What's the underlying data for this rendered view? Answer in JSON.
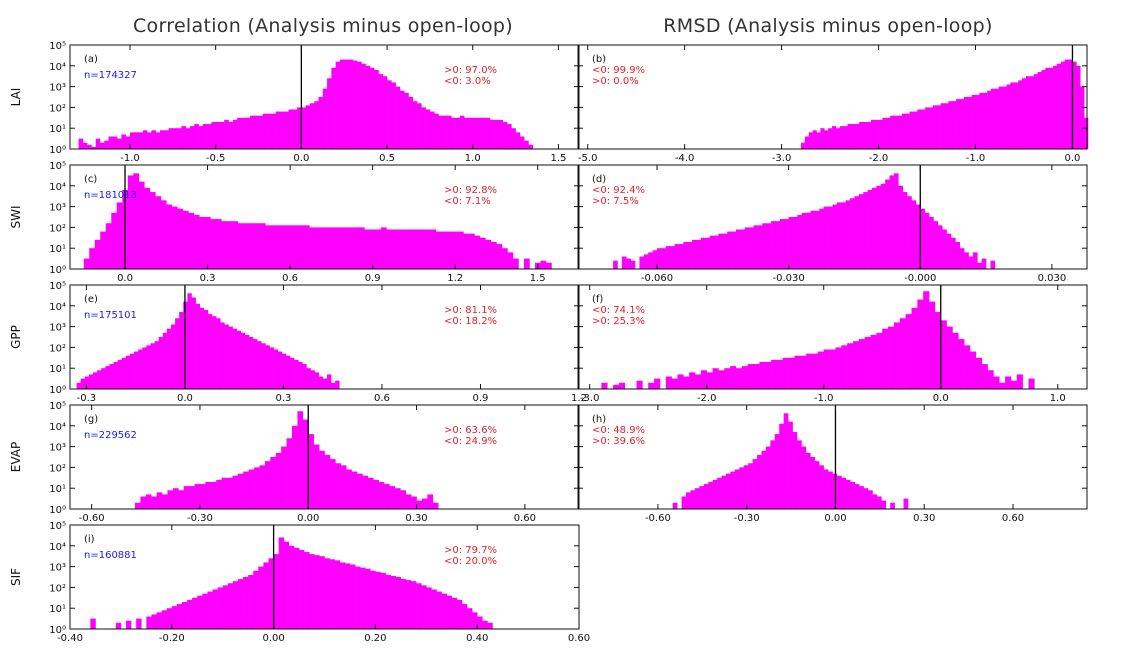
{
  "column_titles": [
    "Correlation (Analysis minus open-loop)",
    "RMSD (Analysis minus open-loop)"
  ],
  "colors": {
    "bar": "#ff00ff",
    "n_text": "#1a1aff",
    "stat_text": "#e8202a",
    "frame": "#111111",
    "zero_line": "#000000"
  },
  "chart_data": [
    {
      "type": "bar",
      "panel": "(a)",
      "ylabel": "LAI",
      "n": "n=174327",
      "stats": [
        ">0: 97.0%",
        "<0:  3.0%"
      ],
      "xlim": [
        -1.35,
        1.62
      ],
      "xticks": [
        -1.0,
        -0.5,
        0.0,
        0.5,
        1.0,
        1.5
      ],
      "xtick_labels": [
        "-1.0",
        "-0.5",
        "0.0",
        "0.5",
        "1.0",
        "1.5"
      ],
      "ylim": [
        1,
        100000
      ],
      "yscale": "log",
      "yticks": [
        1,
        10,
        100,
        1000,
        10000,
        100000
      ],
      "ytick_labels": [
        "10⁰",
        "10¹",
        "10²",
        "10³",
        "10⁴",
        "10⁵"
      ],
      "zero_line": 0.0,
      "bins": {
        "start": -1.3,
        "width": 0.025
      },
      "log10_counts": [
        0.5,
        0.3,
        0.2,
        0.1,
        0.5,
        0.3,
        0.4,
        0.6,
        0.6,
        0.5,
        0.7,
        0.6,
        0.8,
        0.8,
        0.8,
        0.9,
        0.8,
        0.9,
        0.8,
        0.9,
        0.9,
        1.0,
        1.0,
        1.0,
        1.1,
        1.0,
        1.1,
        1.2,
        1.1,
        1.2,
        1.2,
        1.3,
        1.3,
        1.3,
        1.4,
        1.3,
        1.4,
        1.5,
        1.5,
        1.5,
        1.6,
        1.6,
        1.6,
        1.7,
        1.7,
        1.7,
        1.8,
        1.8,
        1.8,
        1.9,
        1.9,
        2.0,
        2.0,
        2.1,
        2.2,
        2.3,
        2.5,
        2.9,
        3.4,
        3.9,
        4.2,
        4.3,
        4.3,
        4.3,
        4.25,
        4.2,
        4.1,
        4.0,
        3.9,
        3.8,
        3.6,
        3.5,
        3.3,
        3.2,
        3.0,
        2.8,
        2.7,
        2.5,
        2.3,
        2.2,
        2.0,
        1.9,
        1.8,
        1.7,
        1.6,
        1.6,
        1.6,
        1.5,
        1.5,
        1.6,
        1.5,
        1.5,
        1.5,
        1.5,
        1.5,
        1.5,
        1.4,
        1.4,
        1.4,
        1.3,
        1.2,
        1.0,
        0.8,
        0.6,
        0.4,
        0.2
      ]
    },
    {
      "type": "bar",
      "panel": "(b)",
      "ylabel": "",
      "n": "",
      "stats": [
        "<0: 99.9%",
        ">0:  0.0%"
      ],
      "xlim": [
        -5.1,
        0.15
      ],
      "xticks": [
        -5.0,
        -4.0,
        -3.0,
        -2.0,
        -1.0,
        0.0
      ],
      "xtick_labels": [
        "-5.0",
        "-4.0",
        "-3.0",
        "-2.0",
        "-1.0",
        "0.0"
      ],
      "ylim": [
        1,
        100000
      ],
      "yscale": "log",
      "yticks": [
        1,
        10,
        100,
        1000,
        10000,
        100000
      ],
      "ytick_labels": [
        "10⁰",
        "10¹",
        "10²",
        "10³",
        "10⁴",
        "10⁵"
      ],
      "zero_line": 0.0,
      "bins": {
        "start": -2.8,
        "width": 0.04
      },
      "log10_counts": [
        0.3,
        0.6,
        0.8,
        0.9,
        0.8,
        1.0,
        0.9,
        1.0,
        1.1,
        1.0,
        1.1,
        1.1,
        1.2,
        1.2,
        1.2,
        1.3,
        1.3,
        1.3,
        1.4,
        1.4,
        1.4,
        1.5,
        1.5,
        1.6,
        1.6,
        1.6,
        1.7,
        1.7,
        1.8,
        1.8,
        1.9,
        1.9,
        2.0,
        2.0,
        2.1,
        2.1,
        2.2,
        2.2,
        2.3,
        2.3,
        2.4,
        2.4,
        2.5,
        2.5,
        2.6,
        2.6,
        2.7,
        2.7,
        2.8,
        2.9,
        2.9,
        3.0,
        3.0,
        3.1,
        3.2,
        3.2,
        3.3,
        3.4,
        3.5,
        3.5,
        3.6,
        3.7,
        3.8,
        3.9,
        3.9,
        4.0,
        4.1,
        4.2,
        4.3,
        4.3,
        4.2,
        4.0,
        3.0,
        1.5
      ]
    },
    {
      "type": "bar",
      "panel": "(c)",
      "ylabel": "SWI",
      "n": "n=181013",
      "stats": [
        ">0: 92.8%",
        "<0:  7.1%"
      ],
      "xlim": [
        -0.2,
        1.65
      ],
      "xticks": [
        0.0,
        0.3,
        0.6,
        0.9,
        1.2,
        1.5
      ],
      "xtick_labels": [
        "0.0",
        "0.3",
        "0.6",
        "0.9",
        "1.2",
        "1.5"
      ],
      "ylim": [
        1,
        100000
      ],
      "yscale": "log",
      "yticks": [
        1,
        10,
        100,
        1000,
        10000,
        100000
      ],
      "ytick_labels": [
        "10⁰",
        "10¹",
        "10²",
        "10³",
        "10⁴",
        "10⁵"
      ],
      "zero_line": 0.0,
      "bins": {
        "start": -0.15,
        "width": 0.02
      },
      "log10_counts": [
        0.5,
        1.0,
        1.4,
        1.8,
        2.2,
        2.7,
        3.2,
        3.8,
        4.5,
        4.6,
        4.2,
        3.9,
        3.7,
        3.5,
        3.3,
        3.1,
        3.0,
        2.9,
        2.8,
        2.7,
        2.6,
        2.5,
        2.5,
        2.4,
        2.4,
        2.3,
        2.3,
        2.3,
        2.2,
        2.2,
        2.2,
        2.2,
        2.2,
        2.1,
        2.1,
        2.1,
        2.1,
        2.1,
        2.1,
        2.1,
        2.1,
        2.0,
        2.0,
        2.0,
        2.0,
        2.0,
        2.0,
        2.0,
        2.0,
        2.0,
        2.0,
        1.9,
        1.9,
        1.9,
        2.0,
        1.9,
        1.9,
        1.9,
        1.9,
        1.9,
        1.9,
        1.9,
        1.9,
        1.9,
        1.8,
        1.8,
        1.8,
        1.8,
        1.8,
        1.7,
        1.7,
        1.6,
        1.5,
        1.4,
        1.3,
        1.2,
        1.0,
        0.8,
        0.5,
        0.0,
        0.5,
        0.0,
        0.3,
        0.4,
        0.3
      ]
    },
    {
      "type": "bar",
      "panel": "(d)",
      "ylabel": "",
      "n": "",
      "stats": [
        "<0: 92.4%",
        ">0:  7.5%"
      ],
      "xlim": [
        -0.078,
        0.038
      ],
      "xticks": [
        -0.06,
        -0.03,
        0.0,
        0.03
      ],
      "xtick_labels": [
        "-0.060",
        "-0.030",
        "-0.000",
        "0.030"
      ],
      "ylim": [
        1,
        100000
      ],
      "yscale": "log",
      "yticks": [
        1,
        10,
        100,
        1000,
        10000,
        100000
      ],
      "ytick_labels": [
        "10⁰",
        "10¹",
        "10²",
        "10³",
        "10⁴",
        "10⁵"
      ],
      "zero_line": 0.0,
      "bins": {
        "start": -0.07,
        "width": 0.001
      },
      "log10_counts": [
        0.4,
        0.0,
        0.6,
        0.5,
        0.4,
        0.0,
        0.6,
        0.7,
        0.8,
        0.9,
        1.0,
        1.0,
        1.1,
        1.1,
        1.2,
        1.2,
        1.3,
        1.3,
        1.4,
        1.4,
        1.5,
        1.5,
        1.6,
        1.6,
        1.7,
        1.7,
        1.8,
        1.8,
        1.9,
        1.9,
        2.0,
        2.0,
        2.1,
        2.1,
        2.2,
        2.2,
        2.3,
        2.3,
        2.4,
        2.4,
        2.5,
        2.5,
        2.6,
        2.7,
        2.7,
        2.8,
        2.8,
        2.9,
        3.0,
        3.0,
        3.1,
        3.2,
        3.2,
        3.3,
        3.4,
        3.5,
        3.6,
        3.7,
        3.8,
        3.9,
        4.0,
        4.1,
        4.3,
        4.5,
        4.6,
        4.0,
        3.7,
        3.5,
        3.3,
        3.1,
        2.9,
        2.7,
        2.5,
        2.3,
        2.1,
        1.9,
        1.7,
        1.5,
        1.3,
        1.0,
        0.8,
        0.6,
        0.8,
        0.3,
        0.5,
        0.0,
        0.4
      ]
    },
    {
      "type": "bar",
      "panel": "(e)",
      "ylabel": "GPP",
      "n": "n=175101",
      "stats": [
        ">0: 81.1%",
        "<0: 18.2%"
      ],
      "xlim": [
        -0.35,
        1.2
      ],
      "xticks": [
        -0.3,
        0.0,
        0.3,
        0.6,
        0.9,
        1.2
      ],
      "xtick_labels": [
        "-0.3",
        "0.0",
        "0.3",
        "0.6",
        "0.9",
        "1.2"
      ],
      "ylim": [
        1,
        100000
      ],
      "yscale": "log",
      "yticks": [
        1,
        10,
        100,
        1000,
        10000,
        100000
      ],
      "ytick_labels": [
        "10⁰",
        "10¹",
        "10²",
        "10³",
        "10⁴",
        "10⁵"
      ],
      "zero_line": 0.0,
      "bins": {
        "start": -0.33,
        "width": 0.0125
      },
      "log10_counts": [
        0.3,
        0.5,
        0.6,
        0.7,
        0.8,
        0.9,
        1.0,
        1.1,
        1.2,
        1.3,
        1.4,
        1.5,
        1.6,
        1.7,
        1.8,
        1.9,
        2.0,
        2.1,
        2.2,
        2.3,
        2.5,
        2.7,
        2.9,
        3.1,
        3.4,
        3.7,
        4.2,
        4.6,
        4.4,
        4.1,
        3.9,
        3.8,
        3.6,
        3.5,
        3.4,
        3.2,
        3.1,
        3.0,
        2.9,
        2.8,
        2.7,
        2.6,
        2.5,
        2.4,
        2.3,
        2.2,
        2.1,
        2.0,
        1.9,
        1.8,
        1.7,
        1.6,
        1.5,
        1.4,
        1.3,
        1.2,
        1.0,
        0.9,
        0.8,
        0.6,
        0.5,
        0.7,
        0.3,
        0.4
      ]
    },
    {
      "type": "bar",
      "panel": "(f)",
      "ylabel": "",
      "n": "",
      "stats": [
        "<0: 74.1%",
        ">0: 25.3%"
      ],
      "xlim": [
        -3.1,
        1.25
      ],
      "xticks": [
        -3.0,
        -2.0,
        -1.0,
        0.0,
        1.0
      ],
      "xtick_labels": [
        "-3.0",
        "-2.0",
        "-1.0",
        "0.0",
        "1.0"
      ],
      "ylim": [
        1,
        100000
      ],
      "yscale": "log",
      "yticks": [
        1,
        10,
        100,
        1000,
        10000,
        100000
      ],
      "ytick_labels": [
        "10⁰",
        "10¹",
        "10²",
        "10³",
        "10⁴",
        "10⁵"
      ],
      "zero_line": 0.0,
      "bins": {
        "start": -2.9,
        "width": 0.05
      },
      "log10_counts": [
        0.3,
        0.0,
        0.2,
        0.3,
        0.0,
        0.0,
        0.4,
        0.0,
        0.3,
        0.5,
        0.0,
        0.6,
        0.5,
        0.7,
        0.6,
        0.8,
        0.7,
        0.9,
        0.8,
        1.0,
        0.9,
        1.0,
        1.1,
        1.0,
        1.1,
        1.2,
        1.2,
        1.3,
        1.3,
        1.4,
        1.4,
        1.5,
        1.5,
        1.6,
        1.6,
        1.7,
        1.7,
        1.8,
        1.9,
        1.9,
        2.0,
        2.1,
        2.2,
        2.3,
        2.4,
        2.5,
        2.6,
        2.7,
        2.9,
        3.0,
        3.2,
        3.4,
        3.6,
        3.9,
        4.3,
        4.7,
        4.2,
        3.7,
        3.3,
        3.0,
        2.7,
        2.4,
        2.1,
        1.8,
        1.5,
        1.2,
        0.9,
        0.6,
        0.3,
        0.6,
        0.4,
        0.7,
        0.0,
        0.5
      ]
    },
    {
      "type": "bar",
      "panel": "(g)",
      "ylabel": "EVAP",
      "n": "n=229562",
      "stats": [
        ">0: 63.6%",
        "<0: 24.9%"
      ],
      "xlim": [
        -0.66,
        0.75
      ],
      "xticks": [
        -0.6,
        -0.3,
        0.0,
        0.3,
        0.6
      ],
      "xtick_labels": [
        "-0.60",
        "-0.30",
        "0.00",
        "0.30",
        "0.60"
      ],
      "ylim": [
        1,
        100000
      ],
      "yscale": "log",
      "yticks": [
        1,
        10,
        100,
        1000,
        10000,
        100000
      ],
      "ytick_labels": [
        "10⁰",
        "10¹",
        "10²",
        "10³",
        "10⁴",
        "10⁵"
      ],
      "zero_line": 0.0,
      "bins": {
        "start": -0.48,
        "width": 0.015
      },
      "log10_counts": [
        0.3,
        0.6,
        0.7,
        0.6,
        0.8,
        0.7,
        0.9,
        1.0,
        0.9,
        1.1,
        1.1,
        1.2,
        1.2,
        1.3,
        1.3,
        1.4,
        1.5,
        1.5,
        1.6,
        1.7,
        1.8,
        1.9,
        2.0,
        2.1,
        2.3,
        2.5,
        2.7,
        3.0,
        3.4,
        4.0,
        4.7,
        4.3,
        3.6,
        3.1,
        2.8,
        2.6,
        2.4,
        2.2,
        2.1,
        1.9,
        1.8,
        1.7,
        1.6,
        1.5,
        1.4,
        1.3,
        1.2,
        1.1,
        1.0,
        0.9,
        0.7,
        0.6,
        0.4,
        0.5,
        0.7,
        0.3
      ]
    },
    {
      "type": "bar",
      "panel": "(h)",
      "ylabel": "",
      "n": "",
      "stats": [
        "<0: 48.9%",
        ">0: 39.6%"
      ],
      "xlim": [
        -0.87,
        0.85
      ],
      "xticks": [
        -0.6,
        -0.3,
        0.0,
        0.3,
        0.6
      ],
      "xtick_labels": [
        "-0.60",
        "-0.30",
        "0.00",
        "0.30",
        "0.60"
      ],
      "ylim": [
        1,
        100000
      ],
      "yscale": "log",
      "yticks": [
        1,
        10,
        100,
        1000,
        10000,
        100000
      ],
      "ytick_labels": [
        "10⁰",
        "10¹",
        "10²",
        "10³",
        "10⁴",
        "10⁵"
      ],
      "zero_line": 0.0,
      "bins": {
        "start": -0.55,
        "width": 0.015
      },
      "log10_counts": [
        0.3,
        0.0,
        0.6,
        0.8,
        0.9,
        1.0,
        1.1,
        1.2,
        1.3,
        1.4,
        1.5,
        1.6,
        1.7,
        1.8,
        1.9,
        2.0,
        2.1,
        2.2,
        2.4,
        2.6,
        2.8,
        3.0,
        3.3,
        3.6,
        4.1,
        4.6,
        4.2,
        3.7,
        3.3,
        3.0,
        2.7,
        2.5,
        2.3,
        2.1,
        1.9,
        1.8,
        1.7,
        1.6,
        1.5,
        1.4,
        1.3,
        1.2,
        1.1,
        1.0,
        0.9,
        0.7,
        0.6,
        0.4,
        0.0,
        0.3,
        0.0,
        0.0,
        0.5
      ]
    },
    {
      "type": "bar",
      "panel": "(i)",
      "ylabel": "SIF",
      "n": "n=160881",
      "stats": [
        ">0: 79.7%",
        "<0: 20.0%"
      ],
      "xlim": [
        -0.4,
        0.6
      ],
      "xticks": [
        -0.4,
        -0.2,
        0.0,
        0.2,
        0.4,
        0.6
      ],
      "xtick_labels": [
        "-0.40",
        "-0.20",
        "0.00",
        "0.20",
        "0.40",
        "0.60"
      ],
      "ylim": [
        1,
        100000
      ],
      "yscale": "log",
      "yticks": [
        1,
        10,
        100,
        1000,
        10000,
        100000
      ],
      "ytick_labels": [
        "10⁰",
        "10¹",
        "10²",
        "10³",
        "10⁴",
        "10⁵"
      ],
      "zero_line": 0.0,
      "bins": {
        "start": -0.36,
        "width": 0.01
      },
      "log10_counts": [
        0.5,
        0.0,
        0.0,
        0.0,
        0.0,
        0.3,
        0.0,
        0.4,
        0.0,
        0.5,
        0.0,
        0.6,
        0.7,
        0.8,
        0.9,
        1.0,
        1.1,
        1.2,
        1.3,
        1.4,
        1.5,
        1.6,
        1.7,
        1.8,
        1.9,
        2.0,
        2.1,
        2.2,
        2.3,
        2.4,
        2.5,
        2.6,
        2.8,
        3.0,
        3.2,
        3.4,
        3.6,
        4.4,
        4.2,
        4.0,
        3.9,
        3.8,
        3.7,
        3.6,
        3.55,
        3.5,
        3.4,
        3.35,
        3.3,
        3.2,
        3.15,
        3.1,
        3.0,
        2.95,
        2.9,
        2.8,
        2.75,
        2.7,
        2.6,
        2.55,
        2.5,
        2.4,
        2.35,
        2.3,
        2.2,
        2.1,
        2.0,
        1.9,
        1.8,
        1.7,
        1.6,
        1.5,
        1.4,
        1.2,
        1.0,
        0.8,
        0.6,
        0.4,
        0.3,
        0.0
      ]
    }
  ]
}
